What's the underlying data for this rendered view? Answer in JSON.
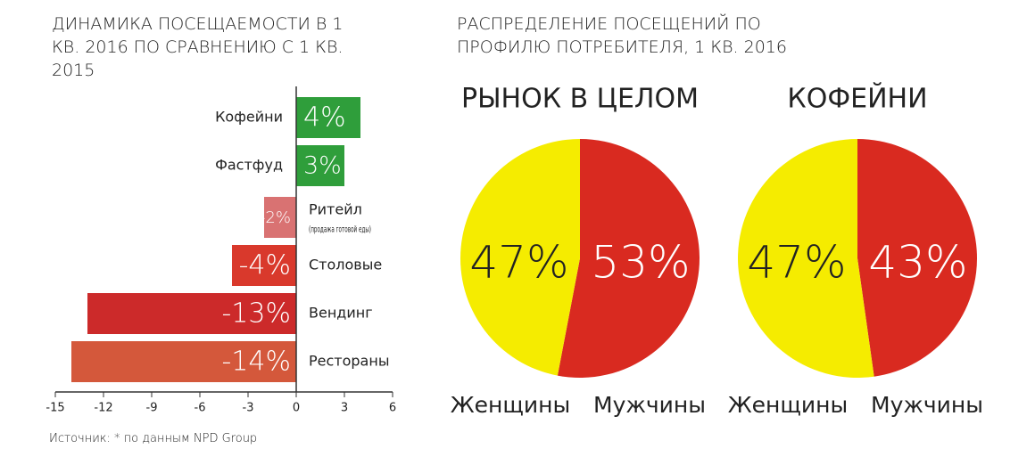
{
  "chart_data": [
    {
      "type": "hbar",
      "title": "ДИНАМИКА ПОСЕЩАЕМОСТИ В 1 КВ. 2016 ПО СРАВНЕНИЮ С 1 КВ. 2015",
      "categories": [
        "Кофейни",
        "Фастфуд",
        "Ритейл",
        "Столовые",
        "Вендинг",
        "Рестораны"
      ],
      "category_notes": [
        null,
        null,
        "(продажа готовой еды)",
        null,
        null,
        null
      ],
      "values": [
        4,
        3,
        -2,
        -4,
        -13,
        -14
      ],
      "value_labels": [
        "4%",
        "3%",
        "-2%",
        "-4%",
        "-13%",
        "-14%"
      ],
      "colors": [
        "#2f9e3b",
        "#2f9e3b",
        "#d97272",
        "#d9392c",
        "#cc2a2a",
        "#d4583b"
      ],
      "xlim": [
        -15,
        6
      ],
      "xticks": [
        -15,
        -12,
        -9,
        -6,
        -3,
        0,
        3,
        6
      ],
      "grid": false
    },
    {
      "type": "pie",
      "title": "РЫНОК В ЦЕЛОМ",
      "categories": [
        "Женщины",
        "Мужчины"
      ],
      "values": [
        47,
        53
      ],
      "value_labels": [
        "47%",
        "53%"
      ],
      "colors": [
        "#f5ec00",
        "#d92a20"
      ]
    },
    {
      "type": "pie",
      "title": "КОФЕЙНИ",
      "categories": [
        "Женщины",
        "Мужчины"
      ],
      "values": [
        47,
        43
      ],
      "value_labels": [
        "47%",
        "43%"
      ],
      "colors": [
        "#f5ec00",
        "#d92a20"
      ]
    }
  ],
  "pie_section_title": "РАСПРЕДЕЛЕНИЕ ПОСЕЩЕНИЙ ПО ПРОФИЛЮ ПОТРЕБИТЕЛЯ, 1 КВ. 2016",
  "source": "Источник: * по данным NPD Group"
}
